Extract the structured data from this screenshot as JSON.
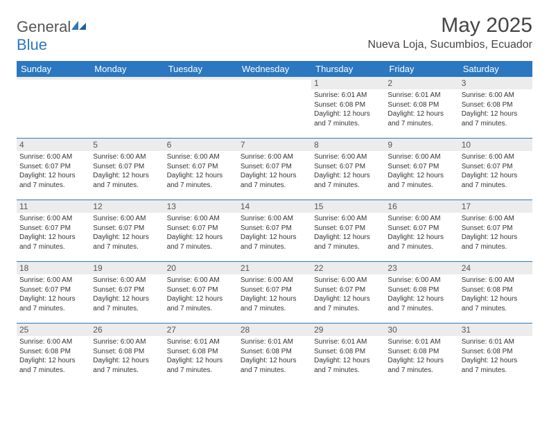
{
  "branding": {
    "logo_general": "General",
    "logo_blue": "Blue",
    "logo_color_general": "#555555",
    "logo_color_blue": "#2b77c0"
  },
  "header": {
    "month_title": "May 2025",
    "location": "Nueva Loja, Sucumbios, Ecuador",
    "title_color": "#444444",
    "title_fontsize": 30,
    "location_fontsize": 16
  },
  "colors": {
    "header_bg": "#2b77c0",
    "header_text": "#ffffff",
    "daynum_bg": "#ececec",
    "row_border": "#2b77c0",
    "body_text": "#333333"
  },
  "weekdays": [
    "Sunday",
    "Monday",
    "Tuesday",
    "Wednesday",
    "Thursday",
    "Friday",
    "Saturday"
  ],
  "weeks": [
    [
      {
        "day": "",
        "lines": []
      },
      {
        "day": "",
        "lines": []
      },
      {
        "day": "",
        "lines": []
      },
      {
        "day": "",
        "lines": []
      },
      {
        "day": "1",
        "lines": [
          "Sunrise: 6:01 AM",
          "Sunset: 6:08 PM",
          "Daylight: 12 hours and 7 minutes."
        ]
      },
      {
        "day": "2",
        "lines": [
          "Sunrise: 6:01 AM",
          "Sunset: 6:08 PM",
          "Daylight: 12 hours and 7 minutes."
        ]
      },
      {
        "day": "3",
        "lines": [
          "Sunrise: 6:00 AM",
          "Sunset: 6:08 PM",
          "Daylight: 12 hours and 7 minutes."
        ]
      }
    ],
    [
      {
        "day": "4",
        "lines": [
          "Sunrise: 6:00 AM",
          "Sunset: 6:07 PM",
          "Daylight: 12 hours and 7 minutes."
        ]
      },
      {
        "day": "5",
        "lines": [
          "Sunrise: 6:00 AM",
          "Sunset: 6:07 PM",
          "Daylight: 12 hours and 7 minutes."
        ]
      },
      {
        "day": "6",
        "lines": [
          "Sunrise: 6:00 AM",
          "Sunset: 6:07 PM",
          "Daylight: 12 hours and 7 minutes."
        ]
      },
      {
        "day": "7",
        "lines": [
          "Sunrise: 6:00 AM",
          "Sunset: 6:07 PM",
          "Daylight: 12 hours and 7 minutes."
        ]
      },
      {
        "day": "8",
        "lines": [
          "Sunrise: 6:00 AM",
          "Sunset: 6:07 PM",
          "Daylight: 12 hours and 7 minutes."
        ]
      },
      {
        "day": "9",
        "lines": [
          "Sunrise: 6:00 AM",
          "Sunset: 6:07 PM",
          "Daylight: 12 hours and 7 minutes."
        ]
      },
      {
        "day": "10",
        "lines": [
          "Sunrise: 6:00 AM",
          "Sunset: 6:07 PM",
          "Daylight: 12 hours and 7 minutes."
        ]
      }
    ],
    [
      {
        "day": "11",
        "lines": [
          "Sunrise: 6:00 AM",
          "Sunset: 6:07 PM",
          "Daylight: 12 hours and 7 minutes."
        ]
      },
      {
        "day": "12",
        "lines": [
          "Sunrise: 6:00 AM",
          "Sunset: 6:07 PM",
          "Daylight: 12 hours and 7 minutes."
        ]
      },
      {
        "day": "13",
        "lines": [
          "Sunrise: 6:00 AM",
          "Sunset: 6:07 PM",
          "Daylight: 12 hours and 7 minutes."
        ]
      },
      {
        "day": "14",
        "lines": [
          "Sunrise: 6:00 AM",
          "Sunset: 6:07 PM",
          "Daylight: 12 hours and 7 minutes."
        ]
      },
      {
        "day": "15",
        "lines": [
          "Sunrise: 6:00 AM",
          "Sunset: 6:07 PM",
          "Daylight: 12 hours and 7 minutes."
        ]
      },
      {
        "day": "16",
        "lines": [
          "Sunrise: 6:00 AM",
          "Sunset: 6:07 PM",
          "Daylight: 12 hours and 7 minutes."
        ]
      },
      {
        "day": "17",
        "lines": [
          "Sunrise: 6:00 AM",
          "Sunset: 6:07 PM",
          "Daylight: 12 hours and 7 minutes."
        ]
      }
    ],
    [
      {
        "day": "18",
        "lines": [
          "Sunrise: 6:00 AM",
          "Sunset: 6:07 PM",
          "Daylight: 12 hours and 7 minutes."
        ]
      },
      {
        "day": "19",
        "lines": [
          "Sunrise: 6:00 AM",
          "Sunset: 6:07 PM",
          "Daylight: 12 hours and 7 minutes."
        ]
      },
      {
        "day": "20",
        "lines": [
          "Sunrise: 6:00 AM",
          "Sunset: 6:07 PM",
          "Daylight: 12 hours and 7 minutes."
        ]
      },
      {
        "day": "21",
        "lines": [
          "Sunrise: 6:00 AM",
          "Sunset: 6:07 PM",
          "Daylight: 12 hours and 7 minutes."
        ]
      },
      {
        "day": "22",
        "lines": [
          "Sunrise: 6:00 AM",
          "Sunset: 6:07 PM",
          "Daylight: 12 hours and 7 minutes."
        ]
      },
      {
        "day": "23",
        "lines": [
          "Sunrise: 6:00 AM",
          "Sunset: 6:08 PM",
          "Daylight: 12 hours and 7 minutes."
        ]
      },
      {
        "day": "24",
        "lines": [
          "Sunrise: 6:00 AM",
          "Sunset: 6:08 PM",
          "Daylight: 12 hours and 7 minutes."
        ]
      }
    ],
    [
      {
        "day": "25",
        "lines": [
          "Sunrise: 6:00 AM",
          "Sunset: 6:08 PM",
          "Daylight: 12 hours and 7 minutes."
        ]
      },
      {
        "day": "26",
        "lines": [
          "Sunrise: 6:00 AM",
          "Sunset: 6:08 PM",
          "Daylight: 12 hours and 7 minutes."
        ]
      },
      {
        "day": "27",
        "lines": [
          "Sunrise: 6:01 AM",
          "Sunset: 6:08 PM",
          "Daylight: 12 hours and 7 minutes."
        ]
      },
      {
        "day": "28",
        "lines": [
          "Sunrise: 6:01 AM",
          "Sunset: 6:08 PM",
          "Daylight: 12 hours and 7 minutes."
        ]
      },
      {
        "day": "29",
        "lines": [
          "Sunrise: 6:01 AM",
          "Sunset: 6:08 PM",
          "Daylight: 12 hours and 7 minutes."
        ]
      },
      {
        "day": "30",
        "lines": [
          "Sunrise: 6:01 AM",
          "Sunset: 6:08 PM",
          "Daylight: 12 hours and 7 minutes."
        ]
      },
      {
        "day": "31",
        "lines": [
          "Sunrise: 6:01 AM",
          "Sunset: 6:08 PM",
          "Daylight: 12 hours and 7 minutes."
        ]
      }
    ]
  ]
}
